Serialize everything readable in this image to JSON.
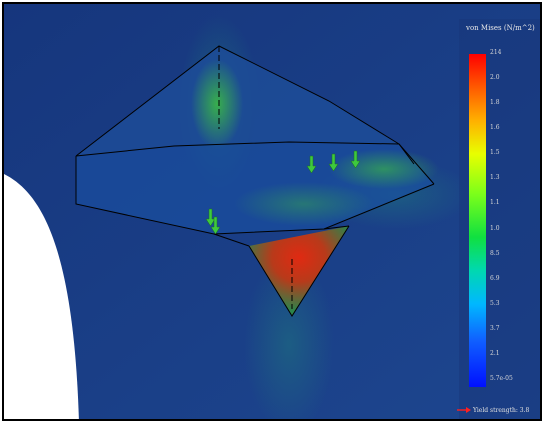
{
  "legend": {
    "title": "von Mises (N/m^2)",
    "ticks": [
      "214",
      "2.0",
      "1.8",
      "1.6",
      "1.5",
      "1.3",
      "1.1",
      "1.0",
      "8.5",
      "6.9",
      "5.3",
      "3.7",
      "2.1",
      "5.7e-05"
    ],
    "gradient_colors": [
      "#ff0000",
      "#ffb000",
      "#e8ff00",
      "#10e040",
      "#00d8b0",
      "#00b8ff",
      "#0010ff"
    ],
    "footer_label": "Yield strength: 3.8"
  },
  "colors": {
    "background": "#1a3f8a",
    "hotspot": "#c8321e",
    "moderate": "#2fa04a",
    "load_arrow": "#3ec93e",
    "edge": "#000000",
    "yield_arrow": "#ff2020"
  },
  "icons": [
    "load-arrow-icon",
    "yield-arrow-icon"
  ]
}
